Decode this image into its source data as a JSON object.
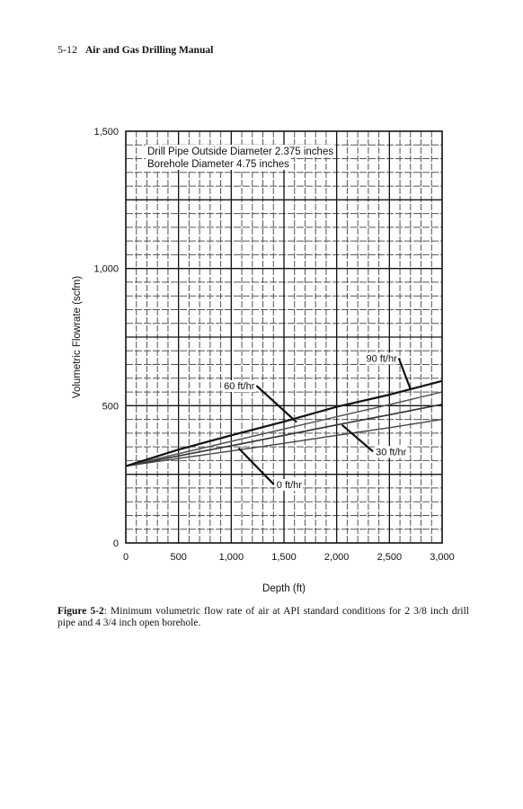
{
  "header": {
    "page_number": "5-12",
    "book_title": "Air and Gas Drilling Manual"
  },
  "figure": {
    "label": "Figure 5-2",
    "caption": ": Minimum volumetric flow rate of air at API standard conditions for 2 3/8 inch drill pipe and 4 3/4 inch open borehole."
  },
  "chart_data": {
    "type": "line",
    "title": "",
    "annotations": [
      "Drill Pipe Outside Diameter 2.375 inches",
      "Borehole Diameter 4.75 inches"
    ],
    "xlabel": "Depth (ft)",
    "ylabel": "Volumetric Flowrate (scfm)",
    "xlim": [
      0,
      3000
    ],
    "ylim": [
      0,
      1500
    ],
    "x_ticks": [
      0,
      500,
      1000,
      1500,
      2000,
      2500,
      3000
    ],
    "x_tick_labels": [
      "0",
      "500",
      "1,000",
      "1,500",
      "2,000",
      "2,500",
      "3,000"
    ],
    "y_ticks": [
      0,
      500,
      1000,
      1500
    ],
    "y_tick_labels": [
      "0",
      "500",
      "1,000",
      "1,500"
    ],
    "grid": true,
    "x": [
      0,
      500,
      1000,
      1500,
      2000,
      2500,
      3000
    ],
    "series": [
      {
        "name": "0 ft/hr",
        "values": [
          280,
          308,
          335,
          363,
          392,
          420,
          450
        ],
        "color": "#444444",
        "width": 1.4
      },
      {
        "name": "30 ft/hr",
        "values": [
          280,
          317,
          354,
          392,
          430,
          467,
          505
        ],
        "color": "#333333",
        "width": 1.6
      },
      {
        "name": "60 ft/hr",
        "values": [
          280,
          325,
          370,
          415,
          460,
          504,
          550
        ],
        "color": "#555555",
        "width": 1.5
      },
      {
        "name": "90 ft/hr",
        "values": [
          280,
          340,
          392,
          442,
          496,
          540,
          590
        ],
        "color": "#111111",
        "width": 2.2
      }
    ],
    "labels": [
      {
        "text": "90 ft/hr",
        "x": 2280,
        "y": 660,
        "arrow_to": [
          2700,
          560
        ]
      },
      {
        "text": "60 ft/hr",
        "x": 930,
        "y": 560,
        "arrow_to": [
          1620,
          440
        ]
      },
      {
        "text": "30 ft/hr",
        "x": 2370,
        "y": 320,
        "arrow_to": [
          2050,
          430
        ]
      },
      {
        "text": "0 ft/hr",
        "x": 1430,
        "y": 200,
        "arrow_to": [
          1070,
          345
        ]
      }
    ]
  }
}
